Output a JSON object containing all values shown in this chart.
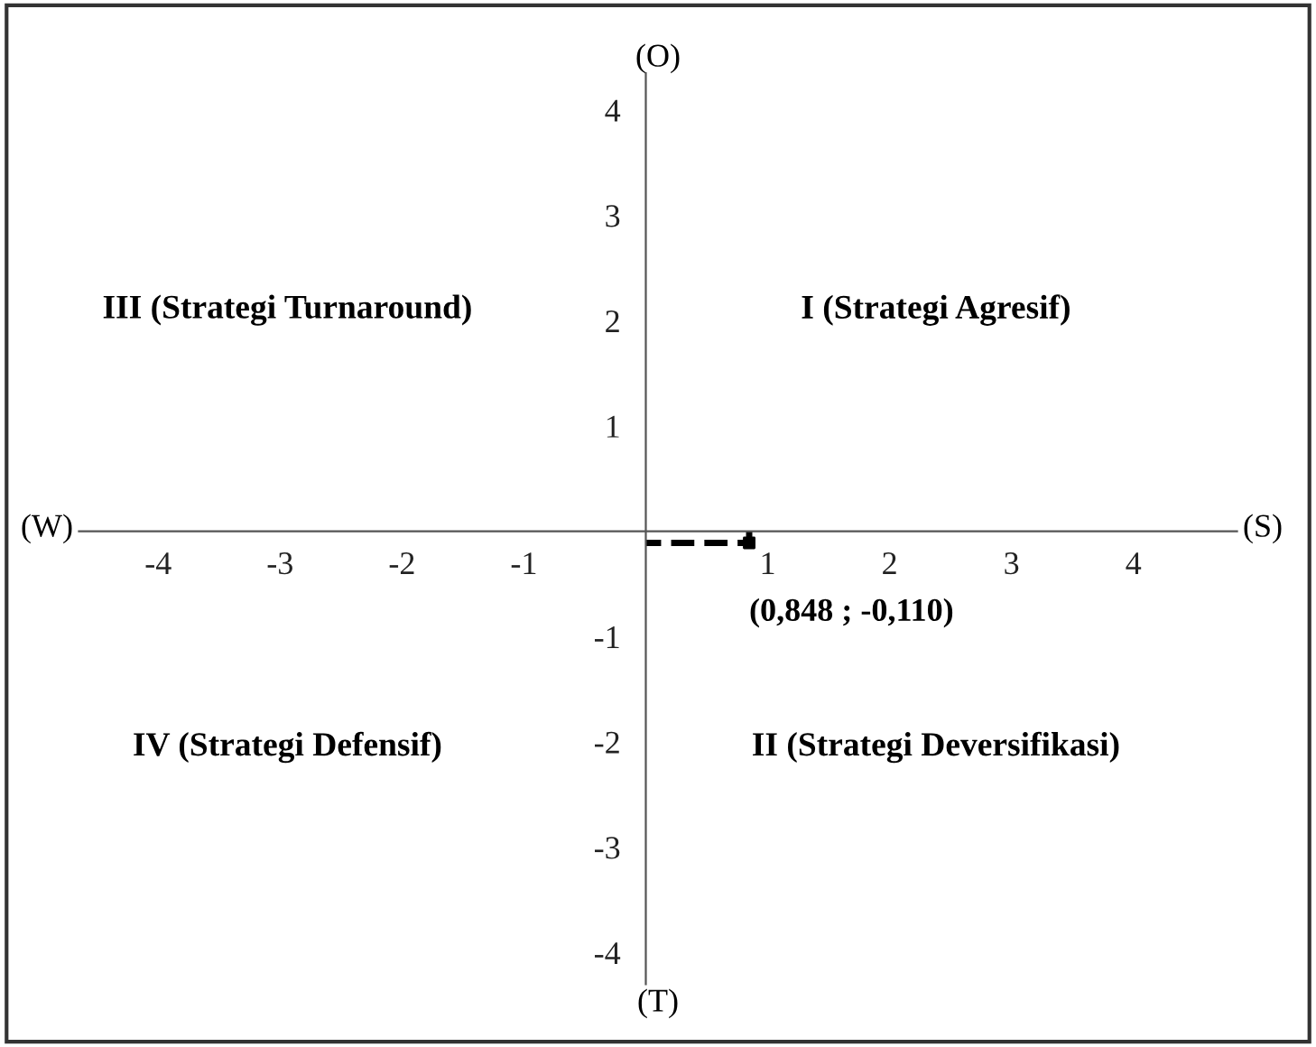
{
  "chart_data": {
    "type": "scatter",
    "series": [
      {
        "x": [
          0.848
        ],
        "color": "#000000",
        "values": [
          -0.11
        ]
      }
    ],
    "marker": "square",
    "line_style": "dashed",
    "xlim": [
      -4.65,
      4.85
    ],
    "ylim": [
      -4.3,
      4.35
    ],
    "xticks": [
      -4,
      -3,
      -2,
      -1,
      1,
      2,
      3,
      4
    ],
    "yticks": [
      -4,
      -3,
      -2,
      -1,
      1,
      2,
      3,
      4
    ],
    "grid": false,
    "legend": false,
    "annotations": [
      "(O)",
      "(T)",
      "(W)",
      "(S)",
      "III (Strategi Turnaround)",
      "I (Strategi Agresif)",
      "IV (Strategi Defensif)",
      "II (Strategi Deversifikasi)",
      {
        "text": "(0,848 ; -0,110)",
        "x": 0.848,
        "y": -0.11
      }
    ]
  }
}
